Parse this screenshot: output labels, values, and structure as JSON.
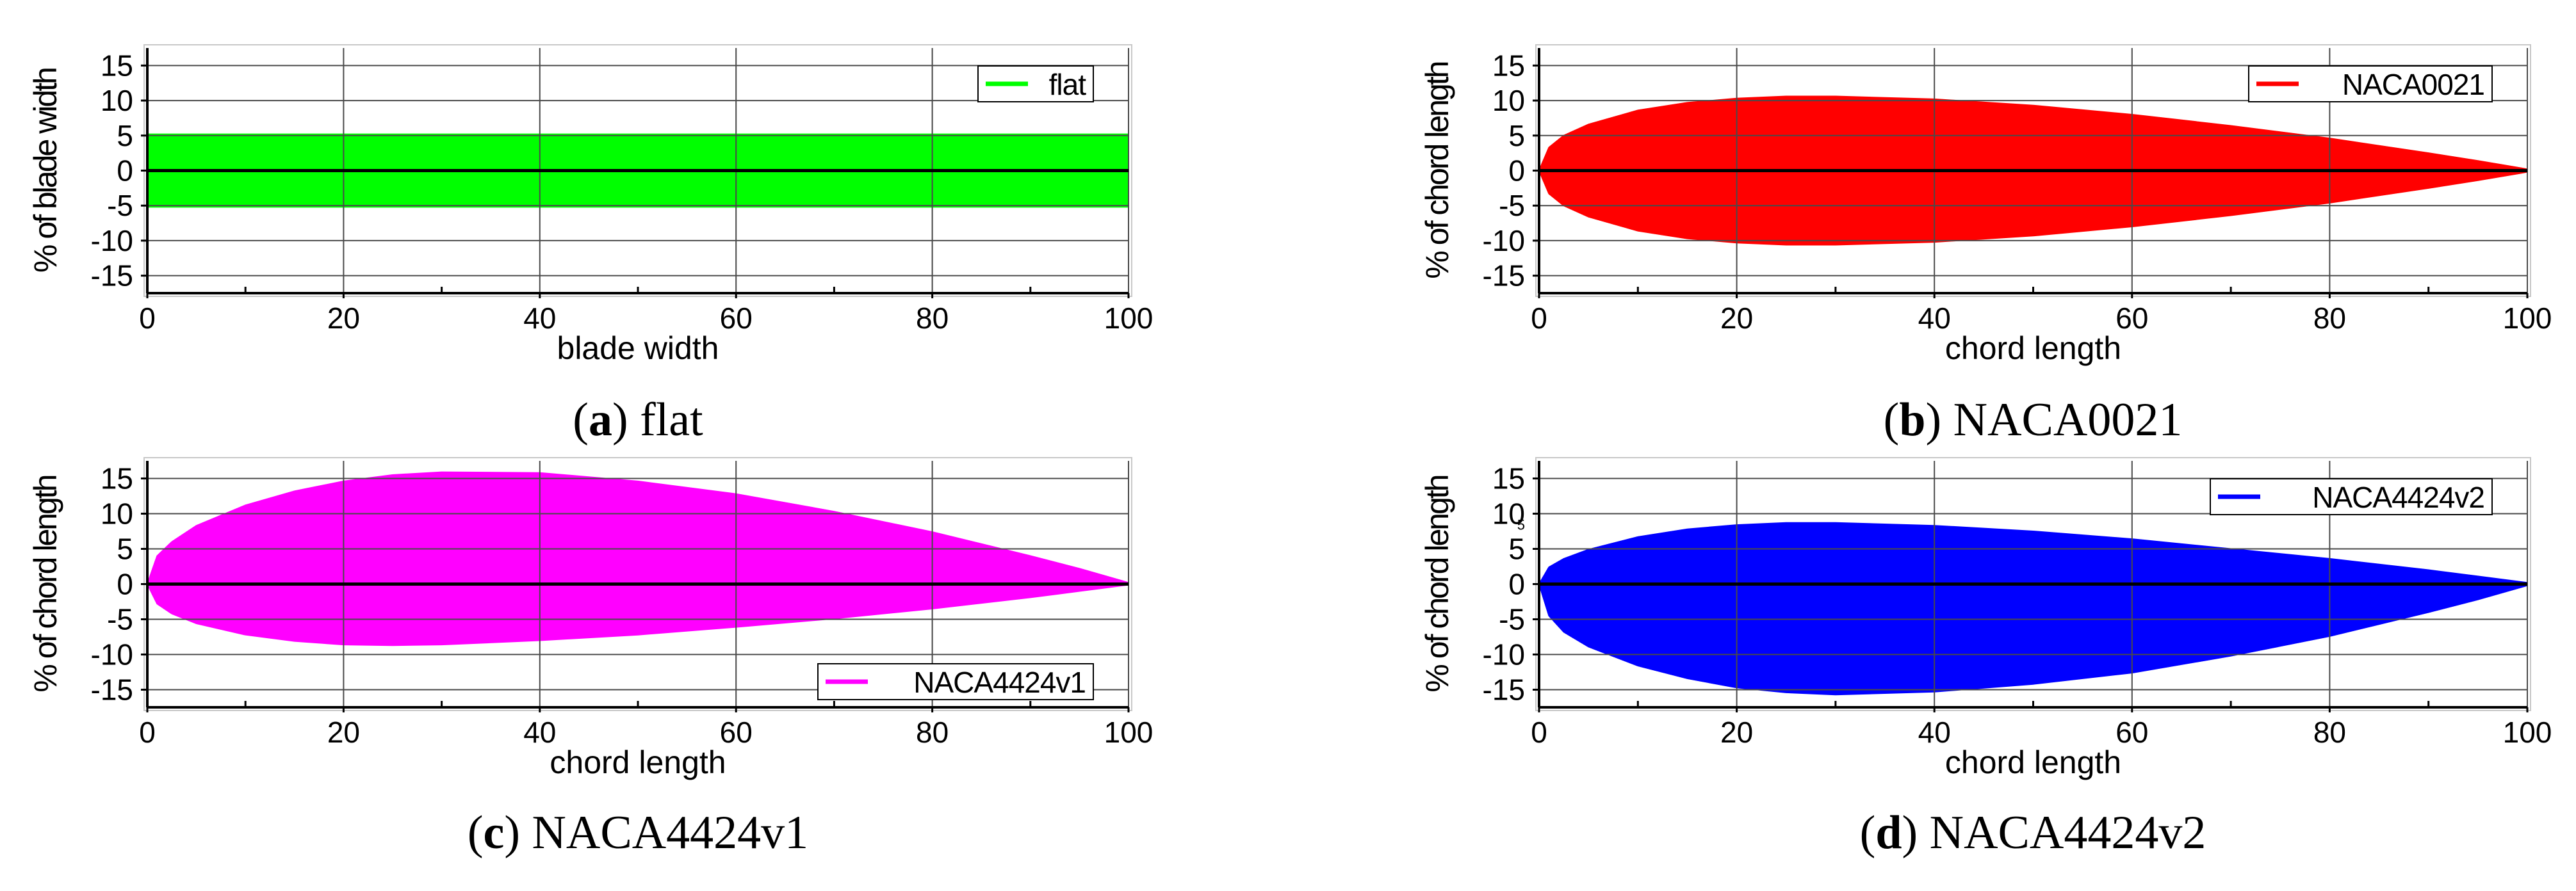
{
  "colors": {
    "grid": "#4a4a4a",
    "axis": "#000000",
    "zero_line": "#000000",
    "frame": "#c8c8c8"
  },
  "chart_data": [
    {
      "id": "a",
      "type": "area",
      "caption_letter": "a",
      "caption_text": "flat",
      "xlabel": "blade width",
      "ylabel": "% of blade width",
      "xlim": [
        0,
        100
      ],
      "ylim": [
        -17.5,
        17.5
      ],
      "xticks": [
        0,
        20,
        40,
        60,
        80,
        100
      ],
      "yticks": [
        -15,
        -10,
        -5,
        0,
        5,
        10,
        15
      ],
      "grid": true,
      "legend_position": "top-right",
      "series": [
        {
          "name": "flat",
          "color": "#00ff00",
          "upper": [
            [
              0,
              5.2
            ],
            [
              100,
              5.2
            ]
          ],
          "lower": [
            [
              0,
              -5.2
            ],
            [
              100,
              -5.2
            ]
          ]
        }
      ]
    },
    {
      "id": "b",
      "type": "area",
      "caption_letter": "b",
      "caption_text": "NACA0021",
      "xlabel": "chord length",
      "ylabel": "% of chord length",
      "xlim": [
        0,
        100
      ],
      "ylim": [
        -17.5,
        17.5
      ],
      "xticks": [
        0,
        20,
        40,
        60,
        80,
        100
      ],
      "yticks": [
        -15,
        -10,
        -5,
        0,
        5,
        10,
        15
      ],
      "grid": true,
      "legend_position": "top-right",
      "series": [
        {
          "name": "NACA0021",
          "color": "#ff0000",
          "upper": [
            [
              0,
              0
            ],
            [
              1,
              3.3
            ],
            [
              2.5,
              5.0
            ],
            [
              5,
              6.6
            ],
            [
              10,
              8.6
            ],
            [
              15,
              9.7
            ],
            [
              20,
              10.3
            ],
            [
              25,
              10.6
            ],
            [
              30,
              10.6
            ],
            [
              40,
              10.2
            ],
            [
              50,
              9.3
            ],
            [
              60,
              8.0
            ],
            [
              70,
              6.4
            ],
            [
              80,
              4.6
            ],
            [
              90,
              2.5
            ],
            [
              95,
              1.4
            ],
            [
              100,
              0.2
            ]
          ],
          "lower": [
            [
              0,
              0
            ],
            [
              1,
              -3.3
            ],
            [
              2.5,
              -5.0
            ],
            [
              5,
              -6.6
            ],
            [
              10,
              -8.6
            ],
            [
              15,
              -9.7
            ],
            [
              20,
              -10.3
            ],
            [
              25,
              -10.6
            ],
            [
              30,
              -10.6
            ],
            [
              40,
              -10.2
            ],
            [
              50,
              -9.3
            ],
            [
              60,
              -8.0
            ],
            [
              70,
              -6.4
            ],
            [
              80,
              -4.6
            ],
            [
              90,
              -2.5
            ],
            [
              95,
              -1.4
            ],
            [
              100,
              -0.2
            ]
          ]
        }
      ]
    },
    {
      "id": "c",
      "type": "area",
      "caption_letter": "c",
      "caption_text": "NACA4424v1",
      "xlabel": "chord length",
      "ylabel": "% of chord length",
      "xlim": [
        0,
        100
      ],
      "ylim": [
        -17.5,
        17.5
      ],
      "xticks": [
        0,
        20,
        40,
        60,
        80,
        100
      ],
      "yticks": [
        -15,
        -10,
        -5,
        0,
        5,
        10,
        15
      ],
      "grid": true,
      "legend_position": "bottom-right",
      "series": [
        {
          "name": "NACA4424v1",
          "color": "#ff00ff",
          "upper": [
            [
              0,
              0
            ],
            [
              1,
              4.0
            ],
            [
              2.5,
              6.0
            ],
            [
              5,
              8.3
            ],
            [
              10,
              11.2
            ],
            [
              15,
              13.2
            ],
            [
              20,
              14.6
            ],
            [
              25,
              15.5
            ],
            [
              30,
              15.9
            ],
            [
              40,
              15.8
            ],
            [
              50,
              14.6
            ],
            [
              60,
              12.8
            ],
            [
              70,
              10.3
            ],
            [
              80,
              7.4
            ],
            [
              90,
              4.0
            ],
            [
              95,
              2.2
            ],
            [
              100,
              0.2
            ]
          ],
          "lower": [
            [
              0,
              0
            ],
            [
              1,
              -2.8
            ],
            [
              2.5,
              -4.2
            ],
            [
              5,
              -5.6
            ],
            [
              10,
              -7.2
            ],
            [
              15,
              -8.1
            ],
            [
              20,
              -8.6
            ],
            [
              25,
              -8.7
            ],
            [
              30,
              -8.6
            ],
            [
              40,
              -8.0
            ],
            [
              50,
              -7.2
            ],
            [
              60,
              -6.1
            ],
            [
              70,
              -4.9
            ],
            [
              80,
              -3.5
            ],
            [
              90,
              -1.9
            ],
            [
              95,
              -1.0
            ],
            [
              100,
              -0.1
            ]
          ]
        }
      ]
    },
    {
      "id": "d",
      "type": "area",
      "caption_letter": "d",
      "caption_text": "NACA4424v2",
      "xlabel": "chord length",
      "ylabel": "% of chord length",
      "xlim": [
        0,
        100
      ],
      "ylim": [
        -17.5,
        17.5
      ],
      "xticks": [
        0,
        20,
        40,
        60,
        80,
        100
      ],
      "yticks": [
        -15,
        -10,
        -5,
        0,
        5,
        10,
        15
      ],
      "extra_tick_label": "5",
      "grid": true,
      "legend_position": "top-right",
      "series": [
        {
          "name": "NACA4424v2",
          "color": "#0000ff",
          "upper": [
            [
              0,
              0
            ],
            [
              1,
              2.4
            ],
            [
              2.5,
              3.6
            ],
            [
              5,
              4.9
            ],
            [
              10,
              6.7
            ],
            [
              15,
              7.8
            ],
            [
              20,
              8.4
            ],
            [
              25,
              8.7
            ],
            [
              30,
              8.7
            ],
            [
              40,
              8.3
            ],
            [
              50,
              7.5
            ],
            [
              60,
              6.4
            ],
            [
              70,
              5.0
            ],
            [
              80,
              3.6
            ],
            [
              90,
              2.0
            ],
            [
              95,
              1.1
            ],
            [
              100,
              0.2
            ]
          ],
          "lower": [
            [
              0,
              0
            ],
            [
              1,
              -4.5
            ],
            [
              2.5,
              -6.8
            ],
            [
              5,
              -8.9
            ],
            [
              10,
              -11.6
            ],
            [
              15,
              -13.4
            ],
            [
              20,
              -14.7
            ],
            [
              25,
              -15.4
            ],
            [
              30,
              -15.7
            ],
            [
              40,
              -15.3
            ],
            [
              50,
              -14.2
            ],
            [
              60,
              -12.6
            ],
            [
              70,
              -10.2
            ],
            [
              80,
              -7.4
            ],
            [
              90,
              -4.0
            ],
            [
              95,
              -2.2
            ],
            [
              100,
              -0.2
            ]
          ]
        }
      ]
    }
  ]
}
